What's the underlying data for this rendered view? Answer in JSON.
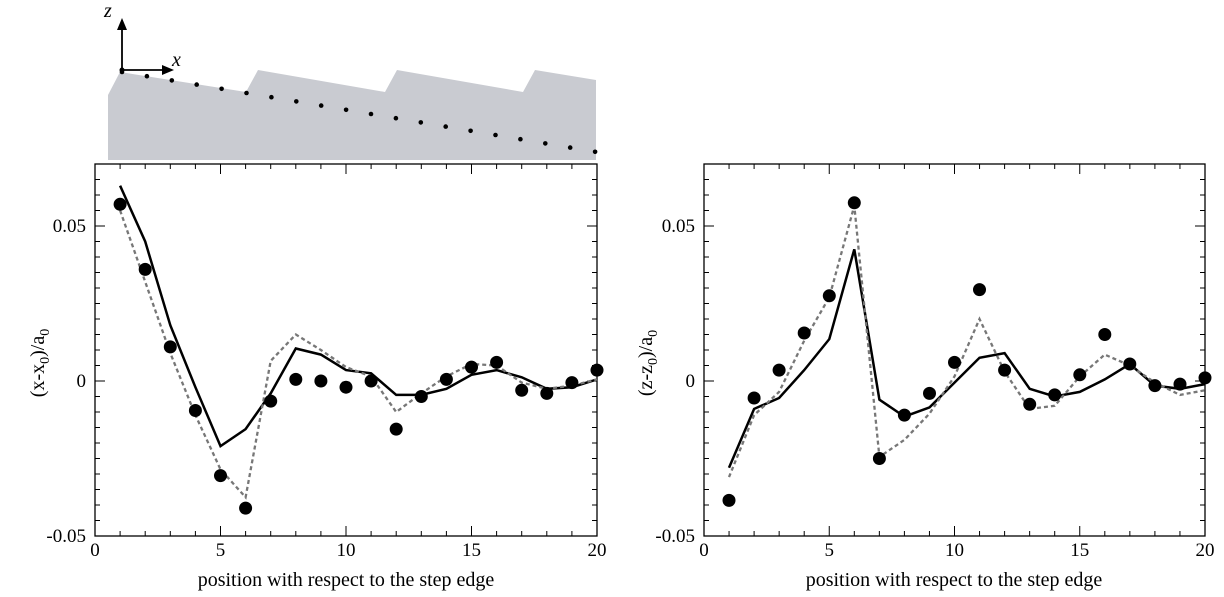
{
  "inset": {
    "z_axis_label": "z",
    "x_axis_label": "x",
    "surface_color": "#c9cbd1",
    "atom_color": "#000000"
  },
  "chart_data": [
    {
      "type": "line",
      "xlabel": "position with respect to the step edge",
      "ylabel": {
        "main": "(x-x",
        "sub1": "0",
        "mid": ")/a",
        "sub2": "0"
      },
      "xlim": [
        0,
        20
      ],
      "ylim": [
        -0.05,
        0.07
      ],
      "xticks": [
        0,
        5,
        10,
        15,
        20
      ],
      "xtick_labels": [
        "0",
        "5",
        "10",
        "15",
        "20"
      ],
      "yticks": [
        -0.05,
        0,
        0.05
      ],
      "ytick_labels": [
        "-0.05",
        "0",
        "0.05"
      ],
      "series": [
        {
          "style": "markers",
          "color": "#000000",
          "x": [
            1,
            2,
            3,
            4,
            5,
            6,
            7,
            8,
            9,
            10,
            11,
            12,
            13,
            14,
            15,
            16,
            17,
            18,
            19,
            20
          ],
          "y": [
            0.057,
            0.036,
            0.011,
            -0.0095,
            -0.0305,
            -0.041,
            -0.0065,
            0.0005,
            0.0,
            -0.002,
            0.0,
            -0.0155,
            -0.005,
            0.0005,
            0.0045,
            0.006,
            -0.003,
            -0.004,
            -0.0005,
            0.0035
          ]
        },
        {
          "style": "solid",
          "color": "#000000",
          "x": [
            1,
            2,
            3,
            4,
            5,
            6,
            7,
            8,
            9,
            10,
            11,
            12,
            13,
            14,
            15,
            16,
            17,
            18,
            19,
            20
          ],
          "y": [
            0.063,
            0.045,
            0.018,
            -0.002,
            -0.021,
            -0.0155,
            -0.004,
            0.0105,
            0.0085,
            0.0035,
            0.0025,
            -0.0045,
            -0.0045,
            -0.0025,
            0.002,
            0.0035,
            0.0012,
            -0.0025,
            -0.002,
            0.0005
          ]
        },
        {
          "style": "dashed",
          "color": "#777777",
          "x": [
            1,
            2,
            3,
            4,
            5,
            6,
            7,
            8,
            9,
            10,
            11,
            12,
            13,
            14,
            15,
            16,
            17,
            18,
            19,
            20
          ],
          "y": [
            0.055,
            0.032,
            0.009,
            -0.011,
            -0.0285,
            -0.0375,
            0.0065,
            0.015,
            0.01,
            0.0045,
            0.0015,
            -0.01,
            -0.004,
            0.0015,
            0.0055,
            0.005,
            -0.0005,
            -0.0025,
            -0.0015,
            0.0005
          ]
        }
      ]
    },
    {
      "type": "line",
      "xlabel": "position with respect to the step edge",
      "ylabel": {
        "main": "(z-z",
        "sub1": "0",
        "mid": ")/a",
        "sub2": "0"
      },
      "xlim": [
        0,
        20
      ],
      "ylim": [
        -0.05,
        0.07
      ],
      "xticks": [
        0,
        5,
        10,
        15,
        20
      ],
      "xtick_labels": [
        "0",
        "5",
        "10",
        "15",
        "20"
      ],
      "yticks": [
        -0.05,
        0,
        0.05
      ],
      "ytick_labels": [
        "-0.05",
        "0",
        "0.05"
      ],
      "series": [
        {
          "style": "markers",
          "color": "#000000",
          "x": [
            1,
            2,
            3,
            4,
            5,
            6,
            7,
            8,
            9,
            10,
            11,
            12,
            13,
            14,
            15,
            16,
            17,
            18,
            19,
            20
          ],
          "y": [
            -0.0385,
            -0.0055,
            0.0035,
            0.0155,
            0.0275,
            0.0575,
            -0.025,
            -0.011,
            -0.004,
            0.006,
            0.0295,
            0.0035,
            -0.0075,
            -0.0045,
            0.002,
            0.015,
            0.0055,
            -0.0015,
            -0.001,
            0.001
          ]
        },
        {
          "style": "solid",
          "color": "#000000",
          "x": [
            1,
            2,
            3,
            4,
            5,
            6,
            7,
            8,
            9,
            10,
            11,
            12,
            13,
            14,
            15,
            16,
            17,
            18,
            19,
            20
          ],
          "y": [
            -0.028,
            -0.009,
            -0.0055,
            0.0035,
            0.0135,
            0.0425,
            -0.006,
            -0.0115,
            -0.0085,
            -0.0005,
            0.0075,
            0.009,
            -0.0025,
            -0.005,
            -0.0035,
            0.0005,
            0.0055,
            -0.0015,
            -0.0025,
            -0.001
          ]
        },
        {
          "style": "dashed",
          "color": "#777777",
          "x": [
            1,
            2,
            3,
            4,
            5,
            6,
            7,
            8,
            9,
            10,
            11,
            12,
            13,
            14,
            15,
            16,
            17,
            18,
            19,
            20
          ],
          "y": [
            -0.031,
            -0.011,
            -0.0035,
            0.013,
            0.027,
            0.0565,
            -0.0245,
            -0.019,
            -0.0105,
            0.0015,
            0.02,
            0.003,
            -0.009,
            -0.008,
            0.0015,
            0.0085,
            0.005,
            -0.0005,
            -0.0045,
            -0.003
          ]
        }
      ]
    }
  ]
}
